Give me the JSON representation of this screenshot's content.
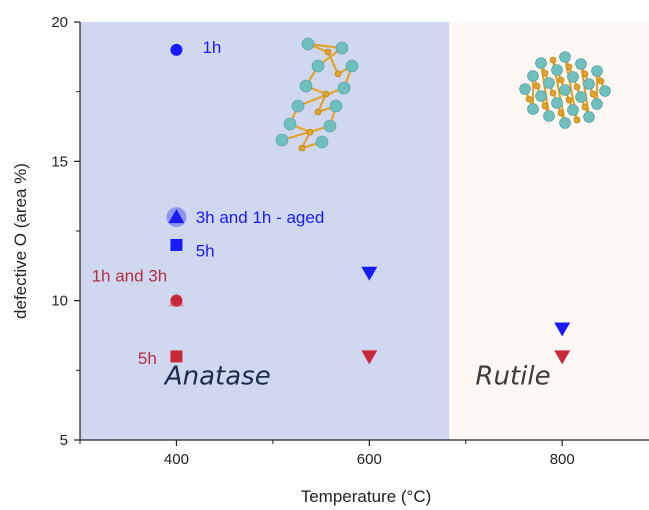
{
  "chart_data": {
    "type": "scatter",
    "title": "",
    "xlabel": "Temperature (°C)",
    "ylabel": "defective O (area %)",
    "xlim": [
      300,
      890
    ],
    "ylim": [
      5,
      20
    ],
    "x_ticks": [
      400,
      600,
      800
    ],
    "y_ticks": [
      5,
      10,
      15,
      20
    ],
    "grid": false,
    "regions": [
      {
        "name": "Anatase",
        "x_range": [
          300,
          683
        ],
        "color": "#d0d8ef"
      },
      {
        "name": "Rutile",
        "x_range": [
          683,
          890
        ],
        "color": "#fdf8f3"
      }
    ],
    "series": [
      {
        "marker": "circle",
        "color": "#1a1aff",
        "points": [
          {
            "x": 400,
            "y": 19
          }
        ]
      },
      {
        "marker": "circle",
        "color": "#8f96ee",
        "points": [
          {
            "x": 400,
            "y": 13
          }
        ]
      },
      {
        "marker": "triangle-up",
        "color": "#1a1aff",
        "points": [
          {
            "x": 400,
            "y": 13
          }
        ]
      },
      {
        "marker": "square",
        "color": "#1a1aff",
        "points": [
          {
            "x": 400,
            "y": 12
          }
        ]
      },
      {
        "marker": "triangle-down",
        "color": "#1a1aff",
        "points": [
          {
            "x": 600,
            "y": 11
          },
          {
            "x": 800,
            "y": 9
          }
        ]
      },
      {
        "marker": "triangle-up",
        "color": "#c9a0b8",
        "points": [
          {
            "x": 400,
            "y": 10
          }
        ]
      },
      {
        "marker": "circle",
        "color": "#c8283a",
        "points": [
          {
            "x": 400,
            "y": 10
          }
        ]
      },
      {
        "marker": "square",
        "color": "#c8283a",
        "points": [
          {
            "x": 400,
            "y": 8
          }
        ]
      },
      {
        "marker": "triangle-down",
        "color": "#c8283a",
        "points": [
          {
            "x": 600,
            "y": 8
          },
          {
            "x": 800,
            "y": 8
          }
        ]
      }
    ],
    "annotations": [
      {
        "text": "1h",
        "x": 427,
        "y": 19.1,
        "color": "#1a1aff"
      },
      {
        "text": "3h  and 1h - aged",
        "x": 420,
        "y": 13,
        "color": "#1a1aff"
      },
      {
        "text": "5h",
        "x": 420,
        "y": 11.8,
        "color": "#1a1aff"
      },
      {
        "text": "1h and 3h",
        "x": 312,
        "y": 10.9,
        "color": "#b32e44"
      },
      {
        "text": "5h",
        "x": 360,
        "y": 7.95,
        "color": "#b32e44"
      },
      {
        "text": "Anatase",
        "x": 388,
        "y": 7.2,
        "color": "#1d2b4a"
      },
      {
        "text": "Rutile",
        "x": 710,
        "y": 7.2,
        "color": "#3c3c3c"
      }
    ],
    "colors": {
      "anatase_region": "#d0d8ef",
      "rutile_region": "#fdf8f3",
      "blue_series": "#1a1aff",
      "red_series": "#c8283a",
      "atom_teal": "#6fbfbf",
      "atom_gold": "#e2a32c"
    }
  }
}
